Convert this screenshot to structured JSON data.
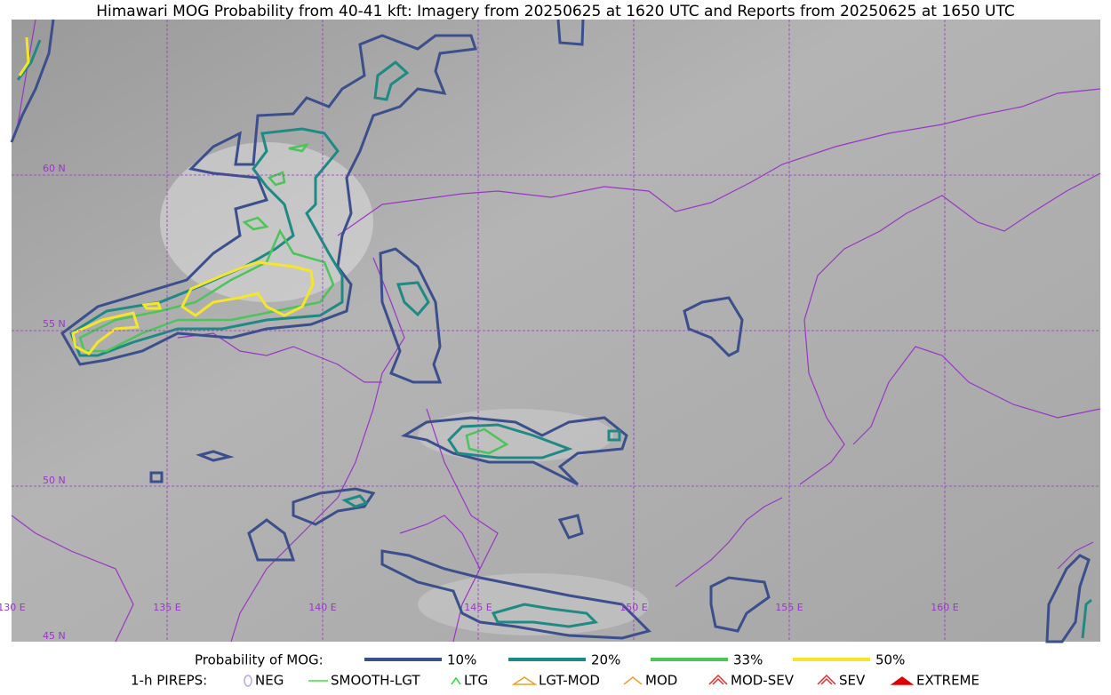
{
  "title": "Himawari MOG Probability from 40-41 kft: Imagery from 20250625 at 1620 UTC and Reports from 20250625 at 1650 UTC",
  "latitude_labels": [
    "60 N",
    "55 N",
    "50 N",
    "45 N"
  ],
  "longitude_labels": [
    "130 E",
    "135 E",
    "140 E",
    "145 E",
    "150 E",
    "155 E",
    "160 E"
  ],
  "legend": {
    "probability": {
      "label": "Probability of MOG:",
      "items": [
        {
          "label": "10%",
          "color": "#3a4f8c"
        },
        {
          "label": "20%",
          "color": "#1f8a84"
        },
        {
          "label": "33%",
          "color": "#4cc45a"
        },
        {
          "label": "50%",
          "color": "#f5e62a"
        }
      ]
    },
    "pireps": {
      "label": "1-h PIREPS:",
      "items": [
        "NEG",
        "SMOOTH-LGT",
        "LTG",
        "LGT-MOD",
        "MOD",
        "MOD-SEV",
        "SEV",
        "EXTREME"
      ]
    }
  }
}
